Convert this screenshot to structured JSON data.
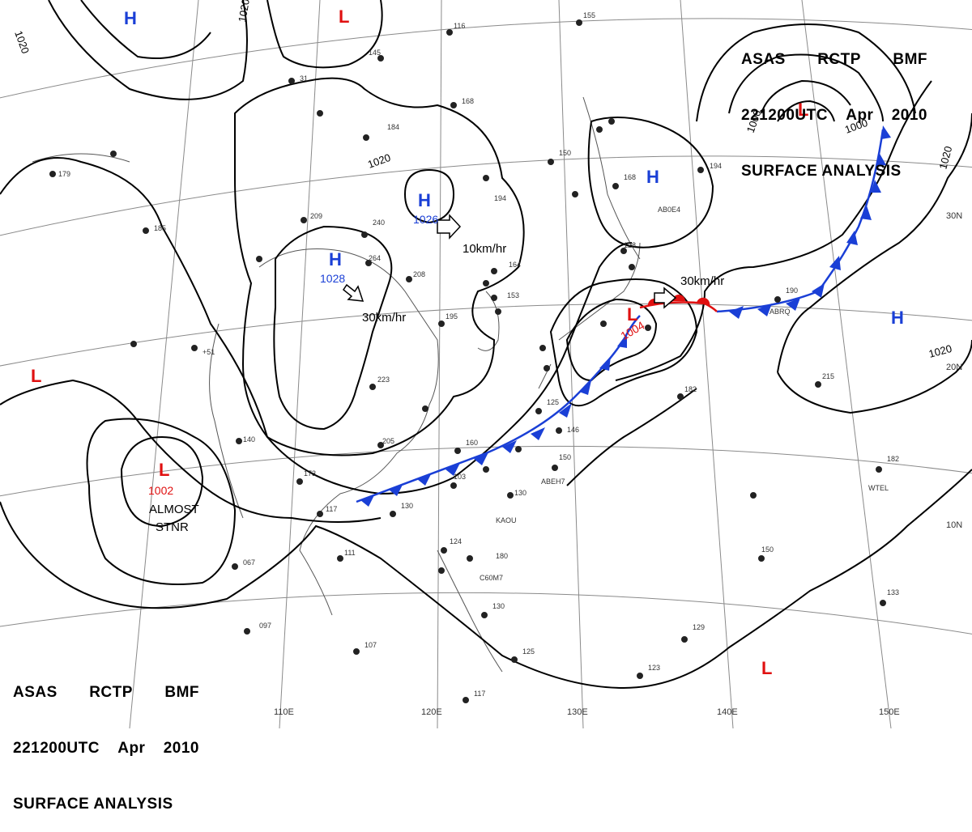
{
  "header": {
    "line1": [
      "ASAS",
      "RCTP",
      "BMF"
    ],
    "line2": [
      "221200UTC",
      "Apr",
      "2010"
    ],
    "line3": "SURFACE ANALYSIS"
  },
  "colors": {
    "high": "#1a3fd6",
    "low": "#e01010",
    "warm_front": "#e01010",
    "cold_front": "#1a3fd6",
    "isobar": "#000000",
    "grid": "#8a8a8a"
  },
  "pressure_systems": [
    {
      "type": "H",
      "value": ""
    },
    {
      "type": "L",
      "value": ""
    },
    {
      "type": "H",
      "value": "1026"
    },
    {
      "type": "H",
      "value": "1028"
    },
    {
      "type": "L",
      "value": "1002"
    },
    {
      "type": "L",
      "value": ""
    },
    {
      "type": "L",
      "value": "1004"
    },
    {
      "type": "H",
      "value": ""
    },
    {
      "type": "L",
      "value": ""
    },
    {
      "type": "H",
      "value": ""
    },
    {
      "type": "L",
      "value": ""
    }
  ],
  "isobar_labels": [
    "1020",
    "1020",
    "1020",
    "1020",
    "1000",
    "1000",
    "1020"
  ],
  "movement_labels": [
    "10km/hr",
    "30km/hr",
    "30km/hr"
  ],
  "stationary_note": [
    "ALMOST",
    "STNR"
  ],
  "longitude_labels": [
    "110E",
    "120E",
    "130E",
    "140E",
    "150E"
  ],
  "latitude_labels": [
    "30N",
    "20N",
    "10N"
  ],
  "station_ids": [
    "AB0E4",
    "ABRQ",
    "KAOU",
    "ABEH7",
    "C60M7",
    "WTEL"
  ]
}
